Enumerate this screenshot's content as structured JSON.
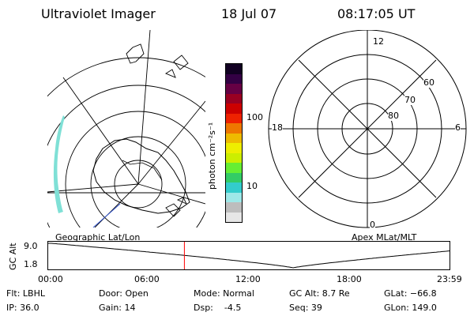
{
  "header": {
    "title": "Ultraviolet Imager",
    "date": "18 Jul 07",
    "time": "08:17:05 UT"
  },
  "colorbar": {
    "unit_label": "photon cm⁻²s⁻¹",
    "ticks": [
      "100",
      "10"
    ],
    "colors": [
      "#e6e6e6",
      "#bdbdbd",
      "#9ee8e8",
      "#33cccc",
      "#33cc66",
      "#66ee33",
      "#ccee00",
      "#eeee00",
      "#eebb00",
      "#ee7700",
      "#ee2200",
      "#cc0000",
      "#990022",
      "#660044",
      "#330044",
      "#110022"
    ]
  },
  "polar_dial": {
    "lat_labels": [
      "60",
      "70",
      "80"
    ],
    "mlt_labels": {
      "top": "12",
      "left": "18",
      "right": "6",
      "bottom": "0"
    }
  },
  "panel_labels": {
    "geographic": "Geographic Lat/Lon",
    "apex": "Apex MLat/MLT"
  },
  "altitude_plot": {
    "ylabel": "GC Alt",
    "ymax_label": "9.0",
    "ymin_label": "1.8",
    "x_ticks": [
      "00:00",
      "06:00",
      "12:00",
      "18:00",
      "23:59"
    ],
    "current_time_fraction": 0.34,
    "curve_color": "#000000",
    "marker_color": "#ff0000"
  },
  "status": {
    "flt": "Flt: LBHL",
    "ip": "IP: 36.0",
    "door": "Door: Open",
    "gain": "Gain: 14",
    "mode": "Mode: Normal",
    "dsp": "Dsp:    -4.5",
    "gc_alt": "GC Alt: 8.7 Re",
    "seq": "Seq: 39",
    "glat": "GLat: −66.8",
    "glon": "GLon: 149.0"
  },
  "colors": {
    "aurora": "#7fe0d6",
    "ocean_line": "#3355cc"
  }
}
